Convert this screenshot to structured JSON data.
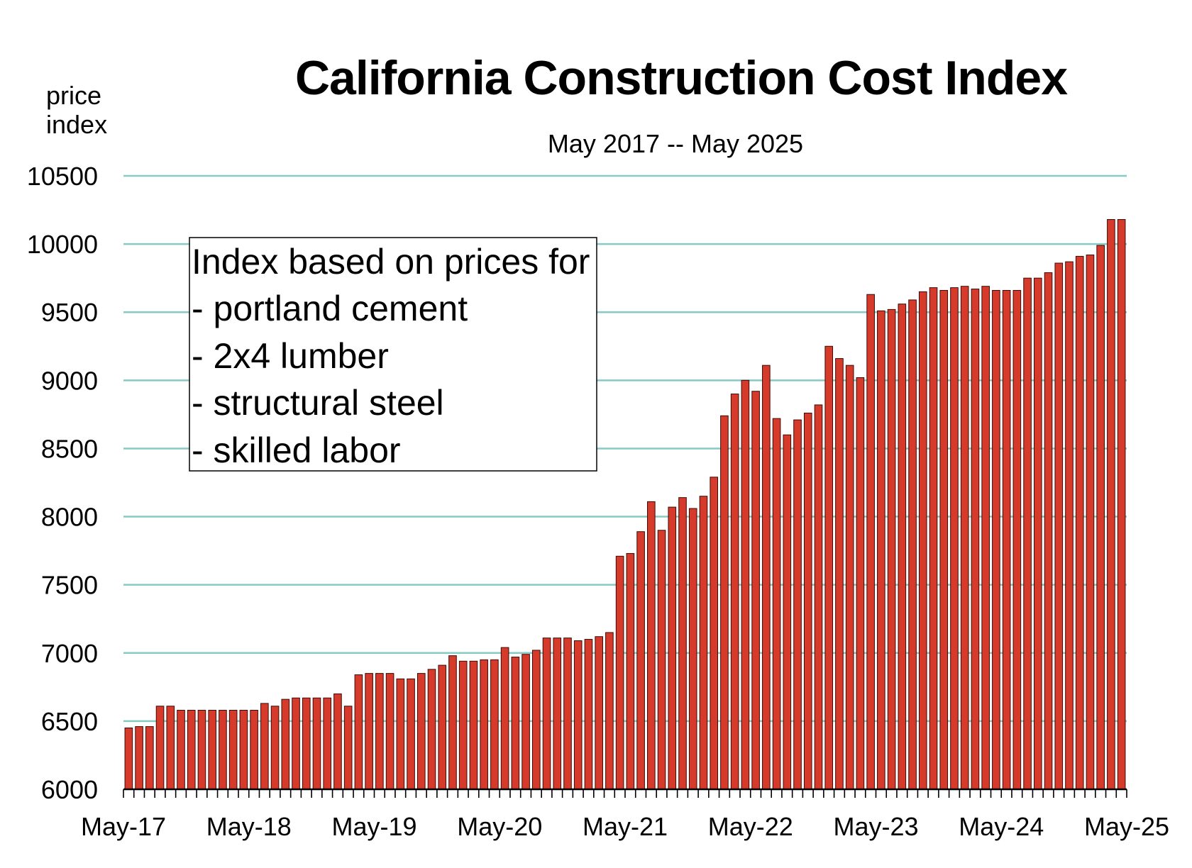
{
  "chart_data": {
    "type": "bar",
    "title": "California Construction Cost Index",
    "subtitle": "May 2017 -- May 2025",
    "ylabel_lines": [
      "price",
      "index"
    ],
    "xlabel": "",
    "ylim": [
      6000,
      10500
    ],
    "yticks": [
      6000,
      6500,
      7000,
      7500,
      8000,
      8500,
      9000,
      9500,
      10000,
      10500
    ],
    "xtick_labels": [
      "May-17",
      "May-18",
      "May-19",
      "May-20",
      "May-21",
      "May-22",
      "May-23",
      "May-24",
      "May-25"
    ],
    "grid": true,
    "bar_color": "#d53a2a",
    "grid_color": "#86c9c5",
    "values": [
      6450,
      6460,
      6460,
      6610,
      6610,
      6580,
      6580,
      6580,
      6580,
      6580,
      6580,
      6580,
      6580,
      6630,
      6610,
      6660,
      6670,
      6670,
      6670,
      6670,
      6700,
      6610,
      6840,
      6850,
      6850,
      6850,
      6810,
      6810,
      6850,
      6880,
      6910,
      6980,
      6940,
      6940,
      6950,
      6950,
      7040,
      6970,
      6990,
      7020,
      7110,
      7110,
      7110,
      7090,
      7100,
      7120,
      7150,
      7710,
      7730,
      7890,
      8110,
      7900,
      8070,
      8140,
      8060,
      8150,
      8290,
      8740,
      8900,
      9000,
      8920,
      9110,
      8720,
      8600,
      8710,
      8760,
      8820,
      9250,
      9160,
      9110,
      9020,
      9630,
      9510,
      9520,
      9560,
      9590,
      9650,
      9680,
      9660,
      9680,
      9690,
      9670,
      9690,
      9660,
      9660,
      9660,
      9750,
      9750,
      9790,
      9860,
      9870,
      9910,
      9920,
      9990,
      10180,
      10180
    ]
  },
  "annotation_box": {
    "lines": [
      "Index based on prices for",
      "- portland cement",
      "- 2x4 lumber",
      "- structural steel",
      "- skilled labor"
    ]
  }
}
